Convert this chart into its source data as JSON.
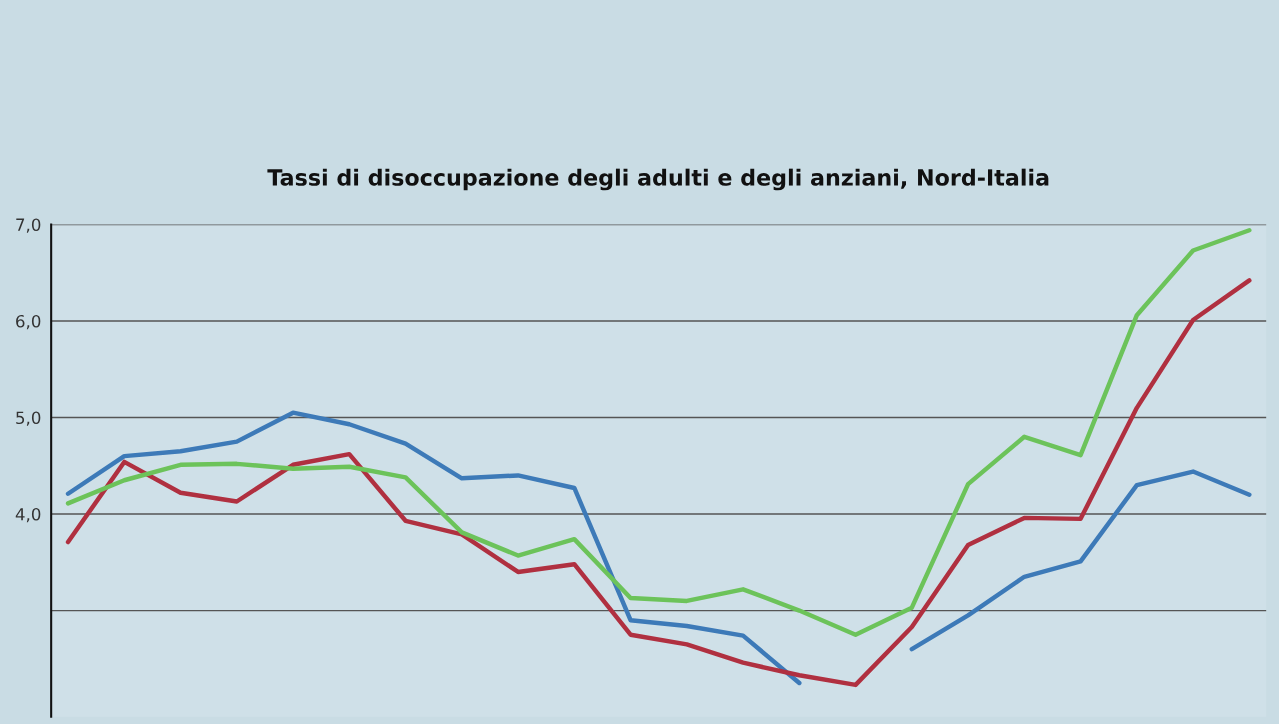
{
  "chart_data": {
    "type": "line",
    "title": "Tassi di disoccupazione degli adulti e degli anziani, Nord-Italia",
    "categories": [
      null,
      null,
      null,
      null,
      null,
      null,
      null,
      null,
      null,
      null,
      null,
      null,
      null,
      null,
      null,
      null,
      null,
      null,
      null,
      null,
      null,
      null
    ],
    "series": [
      {
        "color": "#3d7ab8",
        "values": [
          4.21,
          4.6,
          4.65,
          4.75,
          5.05,
          4.93,
          4.73,
          4.37,
          4.4,
          4.27,
          2.9,
          2.84,
          2.74,
          2.25,
          null,
          2.6,
          2.95,
          3.35,
          3.51,
          4.3,
          4.44,
          4.2
        ]
      },
      {
        "color": "#b03040",
        "values": [
          3.71,
          4.54,
          4.22,
          4.13,
          4.51,
          4.62,
          3.93,
          3.79,
          3.4,
          3.48,
          2.75,
          2.65,
          2.46,
          2.33,
          2.23,
          2.83,
          3.68,
          3.96,
          3.95,
          5.1,
          6.01,
          6.42
        ]
      },
      {
        "color": "#6cc35a",
        "values": [
          4.11,
          4.35,
          4.51,
          4.52,
          4.47,
          4.49,
          4.38,
          3.81,
          3.57,
          3.74,
          3.13,
          3.1,
          3.22,
          3.0,
          2.75,
          3.03,
          4.31,
          4.8,
          4.61,
          6.06,
          6.73,
          6.94
        ]
      }
    ],
    "ylim": [
      1.9,
      7.0
    ],
    "yticks": [
      {
        "value": 3,
        "label": null
      },
      {
        "value": 4,
        "label": "4,0"
      },
      {
        "value": 5,
        "label": "5,0"
      },
      {
        "value": 6,
        "label": "6,0"
      },
      {
        "value": 7,
        "label": "7,0"
      }
    ],
    "grid": "y",
    "tick_labels": "y"
  }
}
